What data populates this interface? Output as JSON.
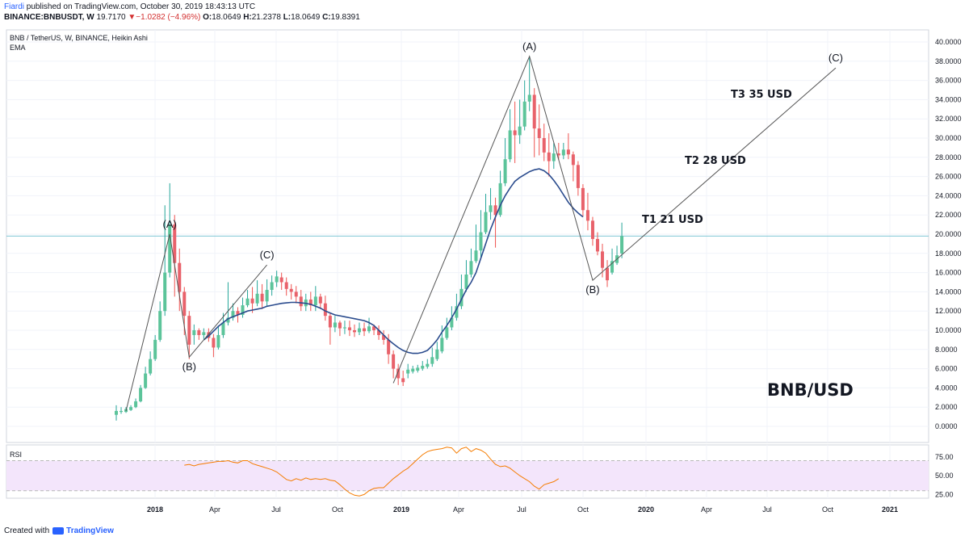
{
  "header": {
    "author": "Fiardi",
    "published_text": " published on TradingView.com, October 30, 2019 18:43:13 UTC",
    "symbol": "BINANCE:BNBUSDT, W",
    "last_price": "19.7170",
    "change_arrow": "▼",
    "change": "−1.0282 (−4.96%)",
    "ohlc": [
      {
        "k": "O:",
        "v": "18.0649"
      },
      {
        "k": "H:",
        "v": "21.2378"
      },
      {
        "k": "L:",
        "v": "18.0649"
      },
      {
        "k": "C:",
        "v": "19.8391"
      }
    ]
  },
  "footer": {
    "created_with": "Created with",
    "brand": "TradingView"
  },
  "colors": {
    "up": "#26a69a",
    "up_fill": "#5cc49a",
    "down": "#ef5350",
    "down_fill": "#e8626b",
    "ema": "#2a4b8d",
    "rsi": "#f57c00",
    "rsi_band": "#f3e5fb",
    "price_line": "#7fc7d4",
    "wave": "#555555"
  },
  "chart_data": {
    "type": "candlestick",
    "title": "BNB / TetherUS, W, BINANCE, Heikin Ashi",
    "indicator_label": "EMA",
    "watermark": "BNB/USD",
    "price_axis": {
      "min": 0,
      "max": 40,
      "ticks": [
        "40.0000",
        "38.0000",
        "36.0000",
        "34.0000",
        "32.0000",
        "30.0000",
        "28.0000",
        "26.0000",
        "24.0000",
        "22.0000",
        "20.0000",
        "18.0000",
        "16.0000",
        "14.0000",
        "12.0000",
        "10.0000",
        "8.0000",
        "6.0000",
        "4.0000",
        "2.0000",
        "0.0000"
      ]
    },
    "time_axis": {
      "labels": [
        "2018",
        "Apr",
        "Jul",
        "Oct",
        "2019",
        "Apr",
        "Jul",
        "Oct",
        "2020",
        "Apr",
        "Jul",
        "Oct",
        "2021"
      ],
      "bold": [
        "2018",
        "2019",
        "2020",
        "2021"
      ]
    },
    "current_price_line": 19.8,
    "candles": [
      [
        1.2,
        1.6,
        2.2,
        0.6
      ],
      [
        1.5,
        1.6,
        2.0,
        1.3
      ],
      [
        1.5,
        1.8,
        2.0,
        1.4
      ],
      [
        1.7,
        2.0,
        2.2,
        1.6
      ],
      [
        2.0,
        2.6,
        2.9,
        1.9
      ],
      [
        2.6,
        4.0,
        4.3,
        2.5
      ],
      [
        4.0,
        5.5,
        6.2,
        3.9
      ],
      [
        5.5,
        7.0,
        7.8,
        5.3
      ],
      [
        7.0,
        9.0,
        9.5,
        6.8
      ],
      [
        9.0,
        12.0,
        13.0,
        8.8
      ],
      [
        12.0,
        16.0,
        23.0,
        11.5
      ],
      [
        16.0,
        21.0,
        25.3,
        15.5
      ],
      [
        21.0,
        17.0,
        22.0,
        13.5
      ],
      [
        17.0,
        14.0,
        18.5,
        12.0
      ],
      [
        14.0,
        11.5,
        14.5,
        9.5
      ],
      [
        11.5,
        8.5,
        12.0,
        7.0
      ],
      [
        9.5,
        10.0,
        10.6,
        8.5
      ],
      [
        10.0,
        9.5,
        10.2,
        9.0
      ],
      [
        9.5,
        9.8,
        10.2,
        9.1
      ],
      [
        9.8,
        9.2,
        10.2,
        8.8
      ],
      [
        9.2,
        8.2,
        9.6,
        7.2
      ],
      [
        8.2,
        9.5,
        10.5,
        8.0
      ],
      [
        9.5,
        10.8,
        11.8,
        9.2
      ],
      [
        10.8,
        11.3,
        15.0,
        10.5
      ],
      [
        11.3,
        12.0,
        12.8,
        11.0
      ],
      [
        12.0,
        11.6,
        12.4,
        10.8
      ],
      [
        11.6,
        12.6,
        13.4,
        11.3
      ],
      [
        12.6,
        13.3,
        14.2,
        12.4
      ],
      [
        13.3,
        12.8,
        14.5,
        11.8
      ],
      [
        12.8,
        13.8,
        15.2,
        12.5
      ],
      [
        13.8,
        13.0,
        14.8,
        12.2
      ],
      [
        13.0,
        14.2,
        15.3,
        12.5
      ],
      [
        14.2,
        15.0,
        15.7,
        13.6
      ],
      [
        15.0,
        15.6,
        16.2,
        14.5
      ],
      [
        15.5,
        15.0,
        16.0,
        14.2
      ],
      [
        15.0,
        14.3,
        15.5,
        13.6
      ],
      [
        14.3,
        14.0,
        14.8,
        13.2
      ],
      [
        14.0,
        13.5,
        14.6,
        12.8
      ],
      [
        13.5,
        12.5,
        14.2,
        12.0
      ],
      [
        12.5,
        13.2,
        13.8,
        12.0
      ],
      [
        13.2,
        12.6,
        14.0,
        12.0
      ],
      [
        12.6,
        13.5,
        14.6,
        12.0
      ],
      [
        13.5,
        12.8,
        13.8,
        12.2
      ],
      [
        12.8,
        11.5,
        13.6,
        11.0
      ],
      [
        11.5,
        10.3,
        11.8,
        8.5
      ],
      [
        10.3,
        10.8,
        11.5,
        9.8
      ],
      [
        10.8,
        10.2,
        11.0,
        9.4
      ],
      [
        10.2,
        10.3,
        11.0,
        9.6
      ],
      [
        10.3,
        10.0,
        11.0,
        9.4
      ],
      [
        10.0,
        9.8,
        10.6,
        9.3
      ],
      [
        9.8,
        10.2,
        10.8,
        9.5
      ],
      [
        10.2,
        9.9,
        10.8,
        9.4
      ],
      [
        9.9,
        10.4,
        11.3,
        9.7
      ],
      [
        10.4,
        10.0,
        10.6,
        9.5
      ],
      [
        10.0,
        9.5,
        10.5,
        9.0
      ],
      [
        9.5,
        9.0,
        10.0,
        8.5
      ],
      [
        9.0,
        7.5,
        9.6,
        6.5
      ],
      [
        7.5,
        6.0,
        7.9,
        5.0
      ],
      [
        6.0,
        5.0,
        6.5,
        4.3
      ],
      [
        5.0,
        4.6,
        5.8,
        4.2
      ],
      [
        5.5,
        5.9,
        6.5,
        5.0
      ],
      [
        5.7,
        6.0,
        6.3,
        5.5
      ],
      [
        5.8,
        6.1,
        6.4,
        5.6
      ],
      [
        6.0,
        6.3,
        6.8,
        5.8
      ],
      [
        6.2,
        6.5,
        7.0,
        6.0
      ],
      [
        6.5,
        7.2,
        8.2,
        6.2
      ],
      [
        7.0,
        8.0,
        8.8,
        6.8
      ],
      [
        7.8,
        9.2,
        10.5,
        7.6
      ],
      [
        9.2,
        10.3,
        11.3,
        9.0
      ],
      [
        10.3,
        11.3,
        12.5,
        10.0
      ],
      [
        11.3,
        12.5,
        13.8,
        11.0
      ],
      [
        12.5,
        14.3,
        15.8,
        12.2
      ],
      [
        14.3,
        15.8,
        17.3,
        14.0
      ],
      [
        15.8,
        17.2,
        18.5,
        15.5
      ],
      [
        17.2,
        18.3,
        21.0,
        17.0
      ],
      [
        18.3,
        20.2,
        22.5,
        17.5
      ],
      [
        20.2,
        22.3,
        24.2,
        20.0
      ],
      [
        22.3,
        23.0,
        24.8,
        21.5
      ],
      [
        23.0,
        22.0,
        23.8,
        18.6
      ],
      [
        22.0,
        25.3,
        26.6,
        21.8
      ],
      [
        25.3,
        27.8,
        30.0,
        25.0
      ],
      [
        27.8,
        30.8,
        33.0,
        27.5
      ],
      [
        30.8,
        30.3,
        33.8,
        27.4
      ],
      [
        30.3,
        31.2,
        34.0,
        29.4
      ],
      [
        31.2,
        33.8,
        36.0,
        30.8
      ],
      [
        33.8,
        34.5,
        38.5,
        32.8
      ],
      [
        34.5,
        31.0,
        35.2,
        28.0
      ],
      [
        31.0,
        30.0,
        33.5,
        28.2
      ],
      [
        30.0,
        28.5,
        31.5,
        27.6
      ],
      [
        28.5,
        27.6,
        30.5,
        26.0
      ],
      [
        27.6,
        28.4,
        29.5,
        26.8
      ],
      [
        28.4,
        28.2,
        29.5,
        27.7
      ],
      [
        28.2,
        28.8,
        29.5,
        27.8
      ],
      [
        28.8,
        28.3,
        30.5,
        27.8
      ],
      [
        28.3,
        27.2,
        28.6,
        25.5
      ],
      [
        27.2,
        24.8,
        27.6,
        24.0
      ],
      [
        24.8,
        22.5,
        25.2,
        21.8
      ],
      [
        22.5,
        21.4,
        24.3,
        20.4
      ],
      [
        21.4,
        19.5,
        21.8,
        18.8
      ],
      [
        19.5,
        18.2,
        20.2,
        17.8
      ],
      [
        18.2,
        16.5,
        19.0,
        15.5
      ],
      [
        16.5,
        15.2,
        17.3,
        14.5
      ],
      [
        16.0,
        17.2,
        18.5,
        15.8
      ],
      [
        17.0,
        17.8,
        18.8,
        16.8
      ],
      [
        18.0,
        19.8,
        21.2,
        17.5
      ]
    ],
    "ema": [
      9.0,
      9.4,
      9.9,
      10.4,
      10.8,
      11.2,
      11.4,
      11.6,
      11.8,
      12.0,
      12.1,
      12.2,
      12.3,
      12.5,
      12.6,
      12.7,
      12.8,
      12.85,
      12.9,
      12.9,
      12.85,
      12.8,
      12.7,
      12.5,
      12.3,
      12.0,
      11.8,
      11.6,
      11.5,
      11.4,
      11.3,
      11.2,
      11.1,
      11.0,
      10.8,
      10.5,
      10.0,
      9.5,
      9.0,
      8.6,
      8.2,
      7.9,
      7.7,
      7.6,
      7.6,
      7.7,
      7.9,
      8.4,
      9.0,
      9.8,
      10.5,
      11.3,
      12.2,
      13.2,
      14.2,
      15.0,
      16.0,
      17.5,
      19.0,
      20.5,
      21.8,
      23.0,
      24.0,
      24.8,
      25.5,
      25.9,
      26.2,
      26.5,
      26.7,
      26.8,
      26.6,
      26.2,
      25.6,
      24.9,
      24.1,
      23.3,
      22.7,
      22.2,
      21.8
    ],
    "ema_start_index": 18,
    "rsi": {
      "label": "RSI",
      "ticks": [
        75,
        50,
        25
      ],
      "band": [
        30,
        70
      ],
      "min": 20,
      "max": 90,
      "values": [
        64,
        65,
        63,
        65,
        66,
        67,
        68,
        69,
        69,
        70,
        68,
        67,
        70,
        70,
        66,
        64,
        62,
        60,
        58,
        55,
        50,
        45,
        43,
        46,
        44,
        47,
        45,
        46,
        45,
        46,
        44,
        43,
        38,
        32,
        27,
        24,
        23,
        25,
        30,
        33,
        34,
        34,
        40,
        46,
        51,
        56,
        60,
        66,
        72,
        78,
        82,
        84,
        85,
        86,
        88,
        87,
        80,
        86,
        88,
        82,
        86,
        84,
        80,
        72,
        65,
        62,
        63,
        60,
        55,
        50,
        46,
        42,
        36,
        32,
        38,
        40,
        42,
        46
      ]
    },
    "waves": [
      {
        "points": [
          [
            2,
            1.6
          ],
          [
            11,
            20.0
          ],
          [
            15,
            7.2
          ],
          [
            31,
            16.8
          ]
        ],
        "labels": [
          "(A)",
          "(B)",
          "(C)"
        ]
      },
      {
        "points": [
          [
            57,
            4.5
          ],
          [
            85,
            38.5
          ],
          [
            98,
            15.2
          ],
          [
            148,
            37.3
          ]
        ],
        "labels": [
          "(A)",
          "(B)",
          "(C)"
        ]
      }
    ],
    "targets": [
      "T1 21 USD",
      "T2 28 USD",
      "T3 35 USD"
    ]
  }
}
